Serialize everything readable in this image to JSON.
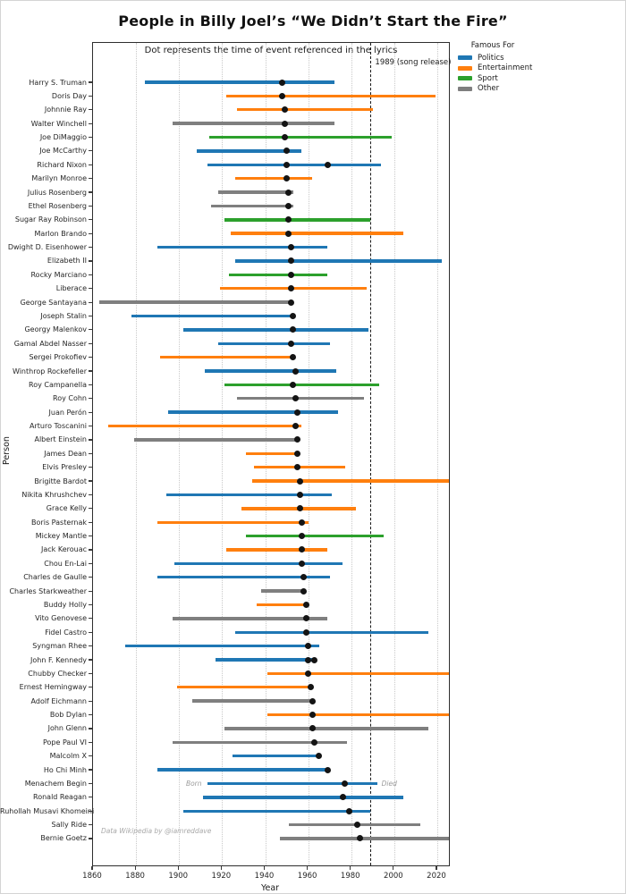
{
  "chart_data": {
    "type": "line",
    "subtype": "lifespan-timeline (gantt-style horizontal lines = lifespans, black dot = referenced event year)",
    "title": "People in Billy Joel’s “We Didn’t Start the Fire”",
    "subtitle": "Dot represents the time of event referenced in the lyrics",
    "xlabel": "Year",
    "ylabel": "Person",
    "xlim": [
      1860,
      2025.4
    ],
    "xticks": [
      1860,
      1880,
      1900,
      1920,
      1940,
      1960,
      1980,
      2000,
      2020
    ],
    "grid": "vertical dotted gridlines at each x tick",
    "song_release_line": {
      "x": 1989,
      "label": "1989 (song release)"
    },
    "watermark": "Data Wikipedia by @iamreddave",
    "born_died_labels": {
      "row_index": 51,
      "born": "Born",
      "died": "Died"
    },
    "dot_color": "#141414",
    "legend": {
      "title": "Famous For",
      "position": "upper right, outside plot",
      "entries": [
        {
          "label": "Politics",
          "color": "#1f77b4"
        },
        {
          "label": "Entertainment",
          "color": "#ff7f0e"
        },
        {
          "label": "Sport",
          "color": "#2ca02c"
        },
        {
          "label": "Other",
          "color": "#7f7f7f"
        }
      ]
    },
    "people": [
      {
        "name": "Harry S. Truman",
        "category": "Politics",
        "born": 1884,
        "died": 1972,
        "events": [
          1948
        ]
      },
      {
        "name": "Doris Day",
        "category": "Entertainment",
        "born": 1922,
        "died": 2019,
        "events": [
          1948
        ]
      },
      {
        "name": "Johnnie Ray",
        "category": "Entertainment",
        "born": 1927,
        "died": 1990,
        "events": [
          1949
        ]
      },
      {
        "name": "Walter Winchell",
        "category": "Other",
        "born": 1897,
        "died": 1972,
        "events": [
          1949
        ]
      },
      {
        "name": "Joe DiMaggio",
        "category": "Sport",
        "born": 1914,
        "died": 1999,
        "events": [
          1949
        ]
      },
      {
        "name": "Joe McCarthy",
        "category": "Politics",
        "born": 1908,
        "died": 1957,
        "events": [
          1950
        ]
      },
      {
        "name": "Richard Nixon",
        "category": "Politics",
        "born": 1913,
        "died": 1994,
        "events": [
          1950,
          1969
        ]
      },
      {
        "name": "Marilyn Monroe",
        "category": "Entertainment",
        "born": 1926,
        "died": 1962,
        "events": [
          1950
        ]
      },
      {
        "name": "Julius Rosenberg",
        "category": "Other",
        "born": 1918,
        "died": 1953,
        "events": [
          1951
        ]
      },
      {
        "name": "Ethel Rosenberg",
        "category": "Other",
        "born": 1915,
        "died": 1953,
        "events": [
          1951
        ]
      },
      {
        "name": "Sugar Ray Robinson",
        "category": "Sport",
        "born": 1921,
        "died": 1989,
        "events": [
          1951
        ]
      },
      {
        "name": "Marlon Brando",
        "category": "Entertainment",
        "born": 1924,
        "died": 2004,
        "events": [
          1951
        ]
      },
      {
        "name": "Dwight D. Eisenhower",
        "category": "Politics",
        "born": 1890,
        "died": 1969,
        "events": [
          1952
        ]
      },
      {
        "name": "Elizabeth II",
        "category": "Politics",
        "born": 1926,
        "died": 2022,
        "events": [
          1952
        ]
      },
      {
        "name": "Rocky Marciano",
        "category": "Sport",
        "born": 1923,
        "died": 1969,
        "events": [
          1952
        ]
      },
      {
        "name": "Liberace",
        "category": "Entertainment",
        "born": 1919,
        "died": 1987,
        "events": [
          1952
        ]
      },
      {
        "name": "George Santayana",
        "category": "Other",
        "born": 1863,
        "died": 1952,
        "events": [
          1952
        ]
      },
      {
        "name": "Joseph Stalin",
        "category": "Politics",
        "born": 1878,
        "died": 1953,
        "events": [
          1953
        ]
      },
      {
        "name": "Georgy Malenkov",
        "category": "Politics",
        "born": 1902,
        "died": 1988,
        "events": [
          1953
        ]
      },
      {
        "name": "Gamal Abdel Nasser",
        "category": "Politics",
        "born": 1918,
        "died": 1970,
        "events": [
          1952
        ]
      },
      {
        "name": "Sergei Prokofiev",
        "category": "Entertainment",
        "born": 1891,
        "died": 1953,
        "events": [
          1953
        ]
      },
      {
        "name": "Winthrop Rockefeller",
        "category": "Politics",
        "born": 1912,
        "died": 1973,
        "events": [
          1954
        ]
      },
      {
        "name": "Roy Campanella",
        "category": "Sport",
        "born": 1921,
        "died": 1993,
        "events": [
          1953
        ]
      },
      {
        "name": "Roy Cohn",
        "category": "Other",
        "born": 1927,
        "died": 1986,
        "events": [
          1954
        ]
      },
      {
        "name": "Juan Perón",
        "category": "Politics",
        "born": 1895,
        "died": 1974,
        "events": [
          1955
        ]
      },
      {
        "name": "Arturo Toscanini",
        "category": "Entertainment",
        "born": 1867,
        "died": 1957,
        "events": [
          1954
        ]
      },
      {
        "name": "Albert Einstein",
        "category": "Other",
        "born": 1879,
        "died": 1955,
        "events": [
          1955
        ]
      },
      {
        "name": "James Dean",
        "category": "Entertainment",
        "born": 1931,
        "died": 1955,
        "events": [
          1955
        ]
      },
      {
        "name": "Elvis Presley",
        "category": "Entertainment",
        "born": 1935,
        "died": 1977,
        "events": [
          1955
        ]
      },
      {
        "name": "Brigitte Bardot",
        "category": "Entertainment",
        "born": 1934,
        "died": null,
        "events": [
          1956
        ]
      },
      {
        "name": "Nikita Khrushchev",
        "category": "Politics",
        "born": 1894,
        "died": 1971,
        "events": [
          1956
        ]
      },
      {
        "name": "Grace Kelly",
        "category": "Entertainment",
        "born": 1929,
        "died": 1982,
        "events": [
          1956
        ]
      },
      {
        "name": "Boris Pasternak",
        "category": "Entertainment",
        "born": 1890,
        "died": 1960,
        "events": [
          1957
        ]
      },
      {
        "name": "Mickey Mantle",
        "category": "Sport",
        "born": 1931,
        "died": 1995,
        "events": [
          1957
        ]
      },
      {
        "name": "Jack Kerouac",
        "category": "Entertainment",
        "born": 1922,
        "died": 1969,
        "events": [
          1957
        ]
      },
      {
        "name": "Chou En-Lai",
        "category": "Politics",
        "born": 1898,
        "died": 1976,
        "events": [
          1957
        ]
      },
      {
        "name": "Charles de Gaulle",
        "category": "Politics",
        "born": 1890,
        "died": 1970,
        "events": [
          1958
        ]
      },
      {
        "name": "Charles Starkweather",
        "category": "Other",
        "born": 1938,
        "died": 1959,
        "events": [
          1958
        ]
      },
      {
        "name": "Buddy Holly",
        "category": "Entertainment",
        "born": 1936,
        "died": 1959,
        "events": [
          1959
        ]
      },
      {
        "name": "Vito Genovese",
        "category": "Other",
        "born": 1897,
        "died": 1969,
        "events": [
          1959
        ]
      },
      {
        "name": "Fidel Castro",
        "category": "Politics",
        "born": 1926,
        "died": 2016,
        "events": [
          1959
        ]
      },
      {
        "name": "Syngman Rhee",
        "category": "Politics",
        "born": 1875,
        "died": 1965,
        "events": [
          1960
        ]
      },
      {
        "name": "John F. Kennedy",
        "category": "Politics",
        "born": 1917,
        "died": 1963,
        "events": [
          1960,
          1963
        ]
      },
      {
        "name": "Chubby Checker",
        "category": "Entertainment",
        "born": 1941,
        "died": null,
        "events": [
          1960
        ]
      },
      {
        "name": "Ernest Hemingway",
        "category": "Entertainment",
        "born": 1899,
        "died": 1961,
        "events": [
          1961
        ]
      },
      {
        "name": "Adolf Eichmann",
        "category": "Other",
        "born": 1906,
        "died": 1962,
        "events": [
          1962
        ]
      },
      {
        "name": "Bob Dylan",
        "category": "Entertainment",
        "born": 1941,
        "died": null,
        "events": [
          1962
        ]
      },
      {
        "name": "John Glenn",
        "category": "Other",
        "born": 1921,
        "died": 2016,
        "events": [
          1962
        ]
      },
      {
        "name": "Pope Paul VI",
        "category": "Other",
        "born": 1897,
        "died": 1978,
        "events": [
          1963
        ]
      },
      {
        "name": "Malcolm X",
        "category": "Politics",
        "born": 1925,
        "died": 1965,
        "events": [
          1965
        ]
      },
      {
        "name": "Ho Chi Minh",
        "category": "Politics",
        "born": 1890,
        "died": 1969,
        "events": [
          1969
        ]
      },
      {
        "name": "Menachem Begin",
        "category": "Politics",
        "born": 1913,
        "died": 1992,
        "events": [
          1977
        ]
      },
      {
        "name": "Ronald Reagan",
        "category": "Politics",
        "born": 1911,
        "died": 2004,
        "events": [
          1976
        ]
      },
      {
        "name": "Ruhollah Musavi Khomeini",
        "category": "Politics",
        "born": 1902,
        "died": 1989,
        "events": [
          1979
        ]
      },
      {
        "name": "Sally Ride",
        "category": "Other",
        "born": 1951,
        "died": 2012,
        "events": [
          1983
        ]
      },
      {
        "name": "Bernie Goetz",
        "category": "Other",
        "born": 1947,
        "died": null,
        "events": [
          1984
        ]
      }
    ]
  }
}
